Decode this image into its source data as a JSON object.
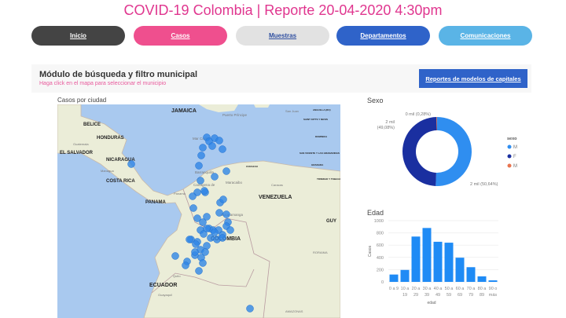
{
  "header": {
    "title": "COVID-19 Colombia | Reporte 20-04-2020 4:30pm"
  },
  "nav": [
    {
      "label": "Inicio",
      "color": "#444444",
      "text": "#ffffff"
    },
    {
      "label": "Casos",
      "color": "#ef4f8e",
      "text": "#ffffff"
    },
    {
      "label": "Muestras",
      "color": "#e2e2e2",
      "text": "#2f4fa0"
    },
    {
      "label": "Departamentos",
      "color": "#2f63c9",
      "text": "#ffffff"
    },
    {
      "label": "Comunicaciones",
      "color": "#5ab4e6",
      "text": "#ffffff"
    }
  ],
  "panel": {
    "title": "Módulo de búsqueda y filtro municipal",
    "subtitle": "Haga click en el mapa para seleccionar el municipio",
    "button": "Reportes de modelos de capitales"
  },
  "map": {
    "title": "Casos por ciudad",
    "labels": [
      "JAMAICA",
      "BELICE",
      "HONDURAS",
      "EL SALVADOR",
      "NICARAGUA",
      "COSTA RICA",
      "PANAMA",
      "VENEZUELA",
      "COLOMBIA",
      "ECUADOR",
      "GUY",
      "Mar Caribe",
      "Puerto Príncipe",
      "San Juan",
      "ANGUILLA (RU)",
      "SAINT KITTS Y NEVIS",
      "DOMINICA",
      "SAN VICENTE Y LAS GRANADINAS",
      "GRANADA",
      "TRINIDAD Y TOBAGO",
      "CURAZAO",
      "Caracas",
      "Barranquilla",
      "Cartagena de",
      "Maracaibo",
      "Bucaramanga",
      "Quito",
      "Guayaquil",
      "Managua",
      "Guatemala",
      "Panamá",
      "RORAIMA",
      "AMAZONAS"
    ],
    "dot_color": "#2f86e6"
  },
  "chart_data": [
    {
      "type": "pie",
      "title": "Sexo",
      "legend_title": "sexo",
      "legend": "right",
      "slices": [
        {
          "name": "M",
          "value_label": "2 mil (50,64%)",
          "percent": 50.64,
          "color": "#2f8ef0"
        },
        {
          "name": "F",
          "value_label": "2 mil (49,08%)",
          "percent": 49.08,
          "color": "#1a2fa0"
        },
        {
          "name": "M",
          "value_label": "0 mil (0,28%)",
          "percent": 0.28,
          "color": "#e8744f"
        }
      ]
    },
    {
      "type": "bar",
      "title": "Edad",
      "xlabel": "edad",
      "ylabel": "Casos",
      "ylim": [
        0,
        1000
      ],
      "yticks": [
        0,
        200,
        400,
        600,
        800,
        1000
      ],
      "categories": [
        [
          "0 a 9",
          ""
        ],
        [
          "10 a",
          "19"
        ],
        [
          "20 a",
          "29"
        ],
        [
          "30 a",
          "39"
        ],
        [
          "40 a",
          "49"
        ],
        [
          "50 a",
          "59"
        ],
        [
          "60 a",
          "69"
        ],
        [
          "70 a",
          "79"
        ],
        [
          "80 a",
          "89"
        ],
        [
          "90 o",
          "más"
        ]
      ],
      "values": [
        120,
        195,
        740,
        880,
        655,
        640,
        395,
        240,
        90,
        25
      ],
      "color": "#1f8bf5"
    }
  ]
}
